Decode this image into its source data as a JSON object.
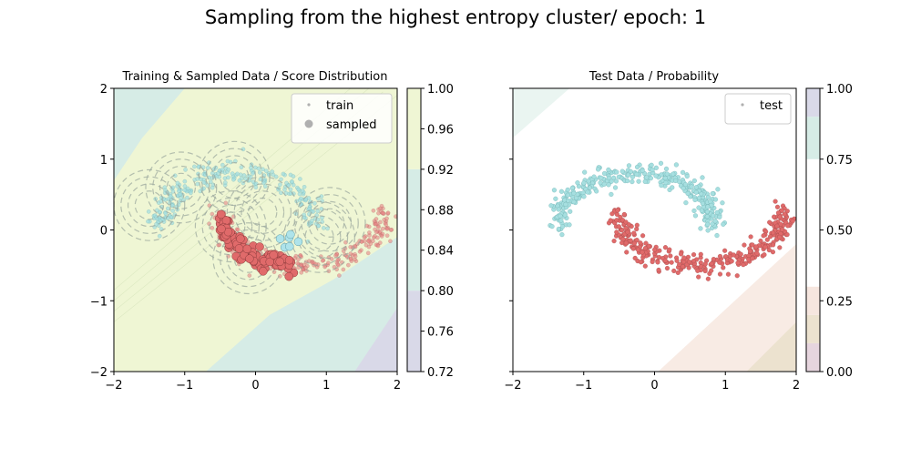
{
  "figure_title": "Sampling from the highest entropy cluster/ epoch: 1",
  "chart_data": [
    {
      "type": "scatter",
      "title": "Training & Sampled Data / Score Distribution",
      "xlabel": "",
      "ylabel": "",
      "xlim": [
        -2,
        2
      ],
      "ylim": [
        -2,
        2
      ],
      "xticks": [
        "−2",
        "−1",
        "0",
        "1",
        "2"
      ],
      "yticks": [
        "−2",
        "−1",
        "0",
        "1",
        "2"
      ],
      "legend": {
        "position": "upper-right",
        "entries": [
          "train",
          "sampled"
        ]
      },
      "colorbar": {
        "ticks": [
          "0.72",
          "0.76",
          "0.80",
          "0.84",
          "0.88",
          "0.92",
          "0.96",
          "1.00"
        ],
        "range": [
          0.72,
          1.0
        ],
        "bands": [
          {
            "from": 0.72,
            "to": 0.8,
            "color": "#d9d9e8"
          },
          {
            "from": 0.8,
            "to": 0.92,
            "color": "#d6ece6"
          },
          {
            "from": 0.92,
            "to": 1.0,
            "color": "#eff6d4"
          }
        ]
      },
      "series": [
        {
          "name": "train",
          "kind": "two-moons points",
          "colors": [
            "#a6dfe0",
            "#e88888"
          ]
        },
        {
          "name": "sampled",
          "kind": "larger points along red moon",
          "colors": [
            "#e06a6a",
            "#aee3ea"
          ]
        }
      ],
      "sampling_circles_centers": [
        [
          -1.5,
          0.35
        ],
        [
          -1.05,
          0.6
        ],
        [
          -0.3,
          0.75
        ],
        [
          0.1,
          0.25
        ],
        [
          0.9,
          -0.1
        ],
        [
          1.05,
          0.1
        ],
        [
          -0.1,
          -0.4
        ],
        [
          -0.35,
          0.05
        ]
      ],
      "colors": {
        "upper_band": "#eff6d4",
        "middle_band": "#d6ece6",
        "lower_band": "#d9d9e8",
        "circle": "#9aa79c"
      }
    },
    {
      "type": "scatter",
      "title": "Test Data / Probability",
      "xlabel": "",
      "ylabel": "",
      "xlim": [
        -2,
        2
      ],
      "ylim": [
        -2,
        2
      ],
      "xticks": [
        "−2",
        "−1",
        "0",
        "1",
        "2"
      ],
      "yticks": [],
      "legend": {
        "position": "upper-right",
        "entries": [
          "test"
        ]
      },
      "colorbar": {
        "ticks": [
          "0.00",
          "0.25",
          "0.50",
          "0.75",
          "1.00"
        ],
        "range": [
          0,
          1
        ],
        "bands": [
          {
            "from": 0.0,
            "to": 0.1,
            "color": "#e6d5de"
          },
          {
            "from": 0.1,
            "to": 0.2,
            "color": "#ece2cf"
          },
          {
            "from": 0.2,
            "to": 0.3,
            "color": "#f6e6df"
          },
          {
            "from": 0.3,
            "to": 0.75,
            "color": "#ffffff"
          },
          {
            "from": 0.75,
            "to": 0.9,
            "color": "#d6ece6"
          },
          {
            "from": 0.9,
            "to": 1.0,
            "color": "#d9d9e8"
          }
        ]
      },
      "series": [
        {
          "name": "test",
          "kind": "two-moons points",
          "colors": [
            "#a6dfe0",
            "#e06a6a"
          ]
        }
      ]
    }
  ]
}
